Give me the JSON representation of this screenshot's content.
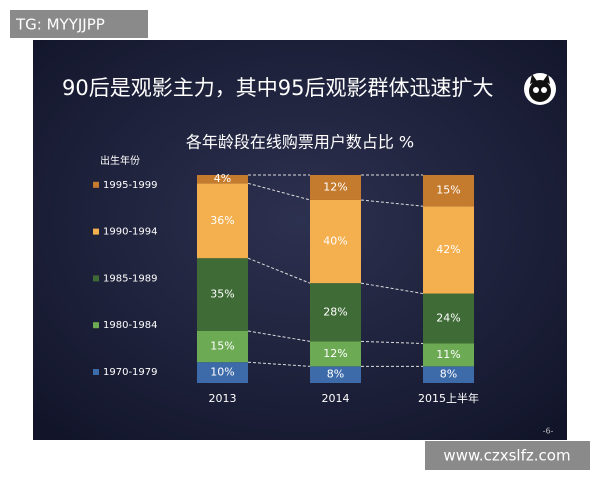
{
  "watermark": "TG: MYYJJPP",
  "website": "www.czxslfz.com",
  "slide_title": "90后是观影主力，其中95后观影群体迅速扩大",
  "page_number": "-6-",
  "chart_data": {
    "type": "stacked_bar",
    "title": "各年龄段在线购票用户数占比 %",
    "legend_title": "出生年份",
    "categories": [
      "2013",
      "2014",
      "2015上半年"
    ],
    "ylim": [
      0,
      100
    ],
    "series": [
      {
        "name": "1970-1979",
        "color": "#3d6aa8",
        "values": [
          10,
          8,
          8
        ],
        "value_labels": [
          "10%",
          "8%",
          "8%"
        ]
      },
      {
        "name": "1980-1984",
        "color": "#6cab53",
        "values": [
          15,
          12,
          11
        ],
        "value_labels": [
          "15%",
          "12%",
          "11%"
        ]
      },
      {
        "name": "1985-1989",
        "color": "#3f6b36",
        "values": [
          35,
          28,
          24
        ],
        "value_labels": [
          "35%",
          "28%",
          "24%"
        ]
      },
      {
        "name": "1990-1994",
        "color": "#f4af4e",
        "values": [
          36,
          40,
          42
        ],
        "value_labels": [
          "36%",
          "40%",
          "42%"
        ]
      },
      {
        "name": "1995-1999",
        "color": "#c57b2d",
        "values": [
          4,
          12,
          15
        ],
        "value_labels": [
          "4%",
          "12%",
          "15%"
        ]
      }
    ]
  }
}
